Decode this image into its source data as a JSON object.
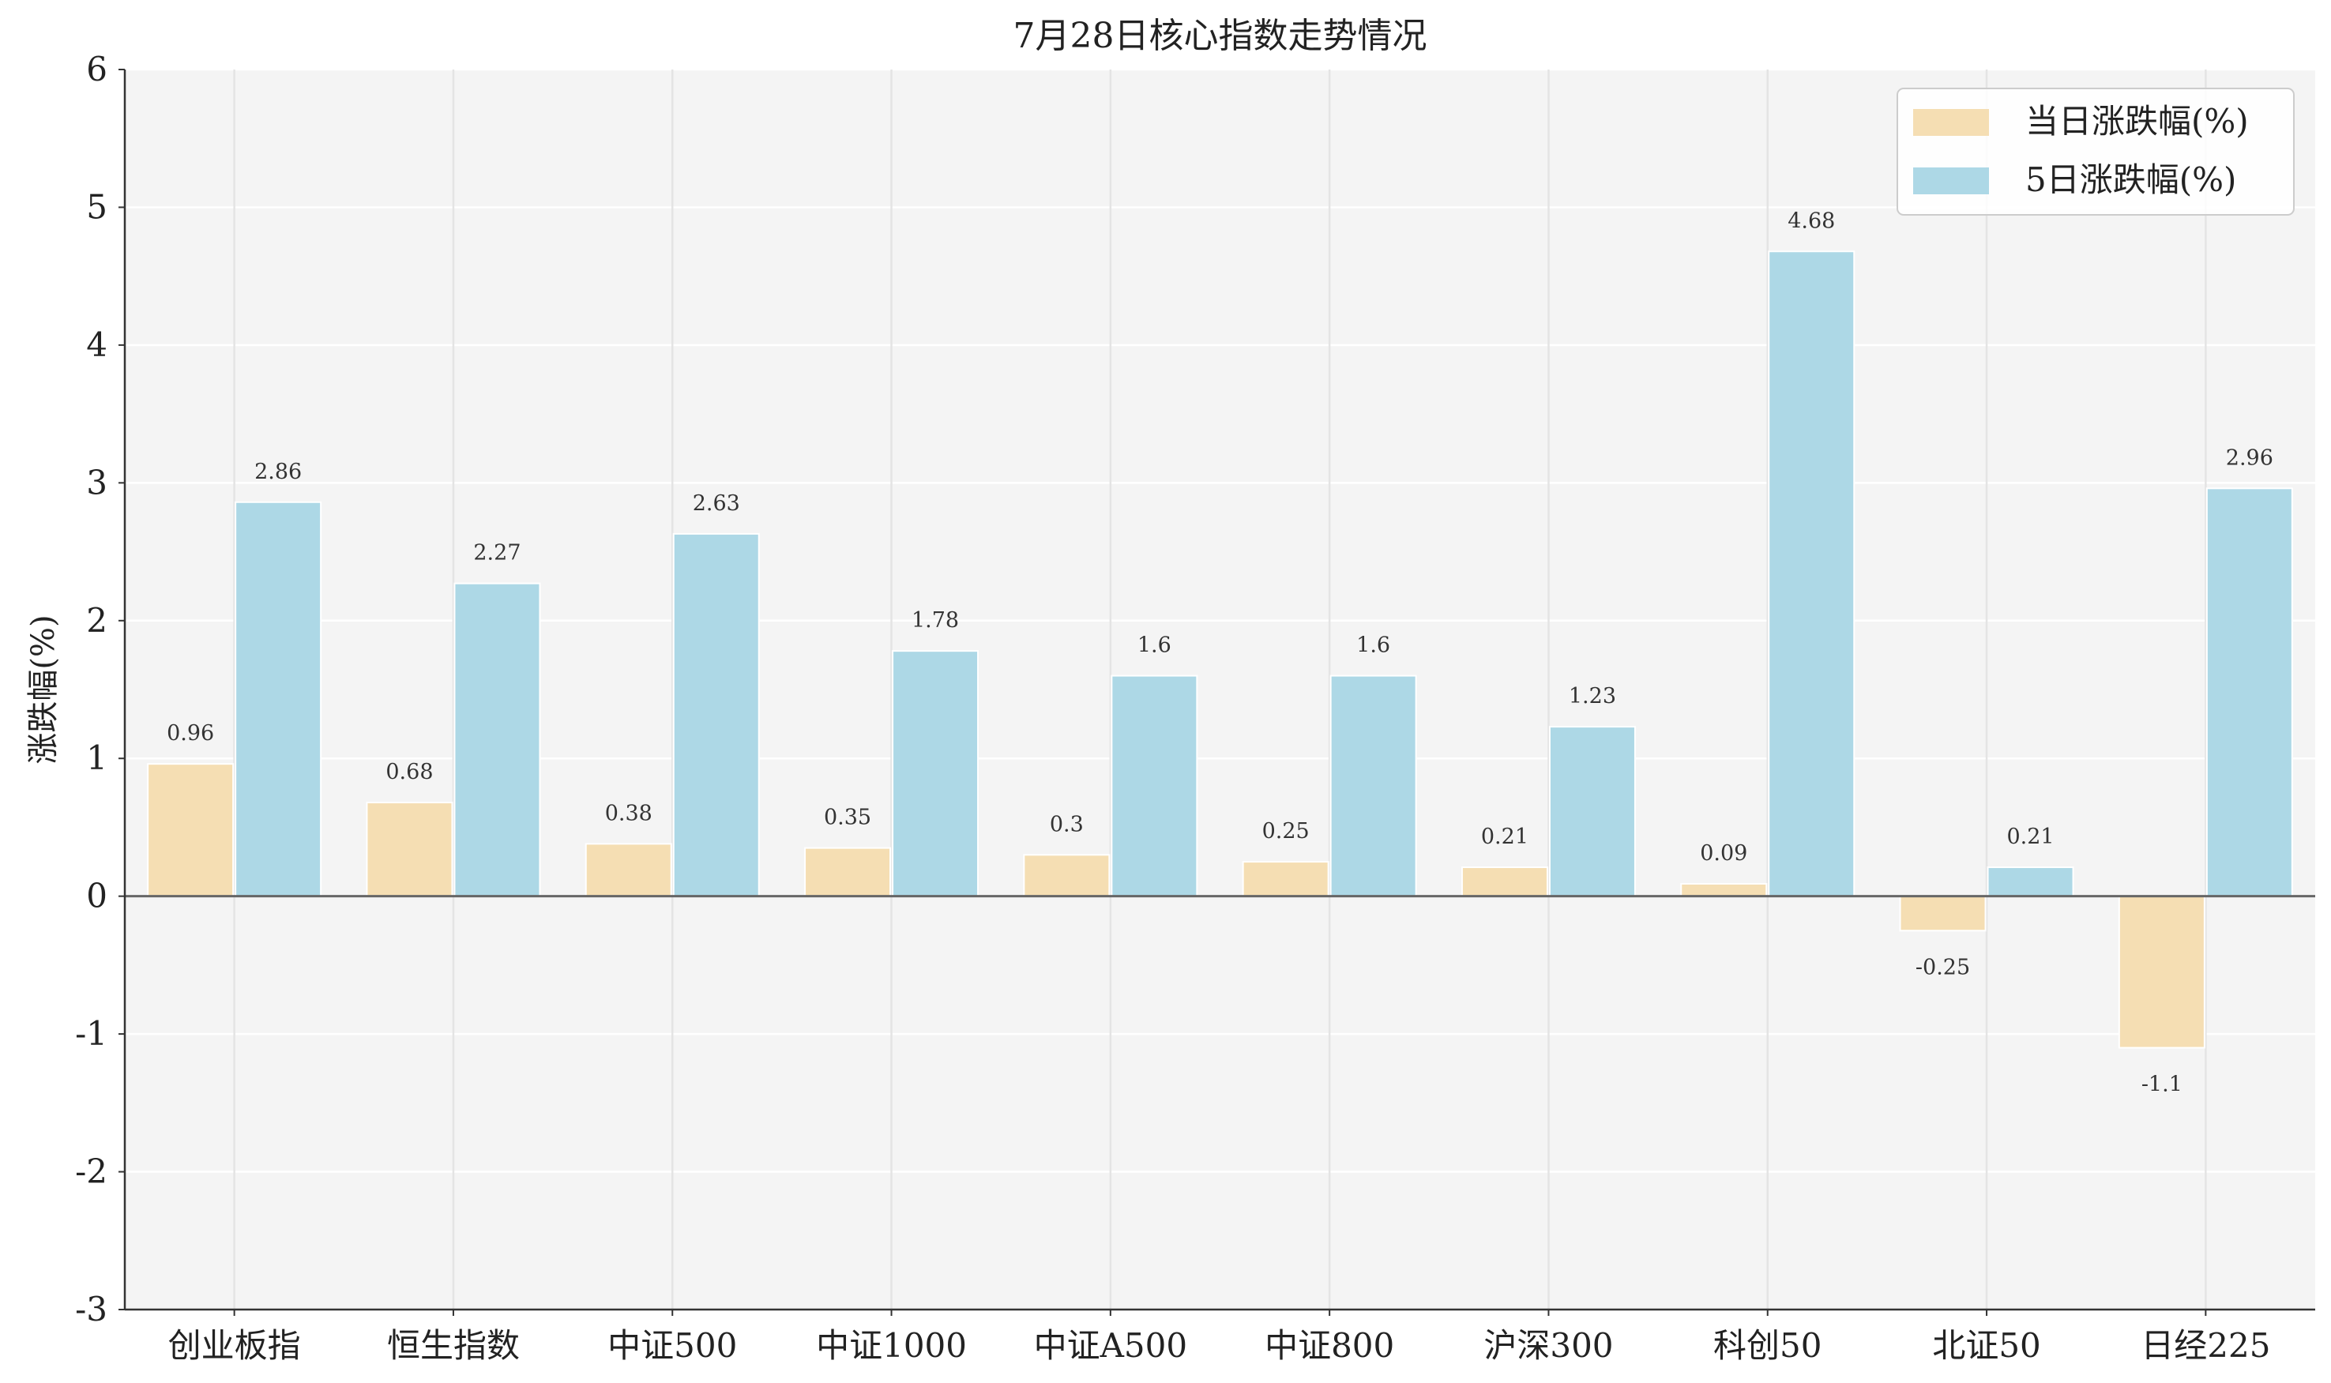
{
  "chart_data": {
    "type": "bar",
    "title": "7月28日核心指数走势情况",
    "xlabel": "",
    "ylabel": "涨跌幅(%)",
    "ylim": [
      -3,
      6
    ],
    "yticks": [
      -3,
      -2,
      -1,
      0,
      1,
      2,
      3,
      4,
      5,
      6
    ],
    "grid": true,
    "legend_position": "top-right",
    "categories": [
      "创业板指",
      "恒生指数",
      "中证500",
      "中证1000",
      "中证A500",
      "中证800",
      "沪深300",
      "科创50",
      "北证50",
      "日经225"
    ],
    "series": [
      {
        "name": "当日涨跌幅(%)",
        "color": "#F5DEB3",
        "values": [
          0.96,
          0.68,
          0.38,
          0.35,
          0.3,
          0.25,
          0.21,
          0.09,
          -0.25,
          -1.1
        ]
      },
      {
        "name": "5日涨跌幅(%)",
        "color": "#ADD8E6",
        "values": [
          2.86,
          2.27,
          2.63,
          1.78,
          1.6,
          1.6,
          1.23,
          4.68,
          0.21,
          2.96
        ]
      }
    ],
    "plot_background": "#F4F4F4"
  }
}
